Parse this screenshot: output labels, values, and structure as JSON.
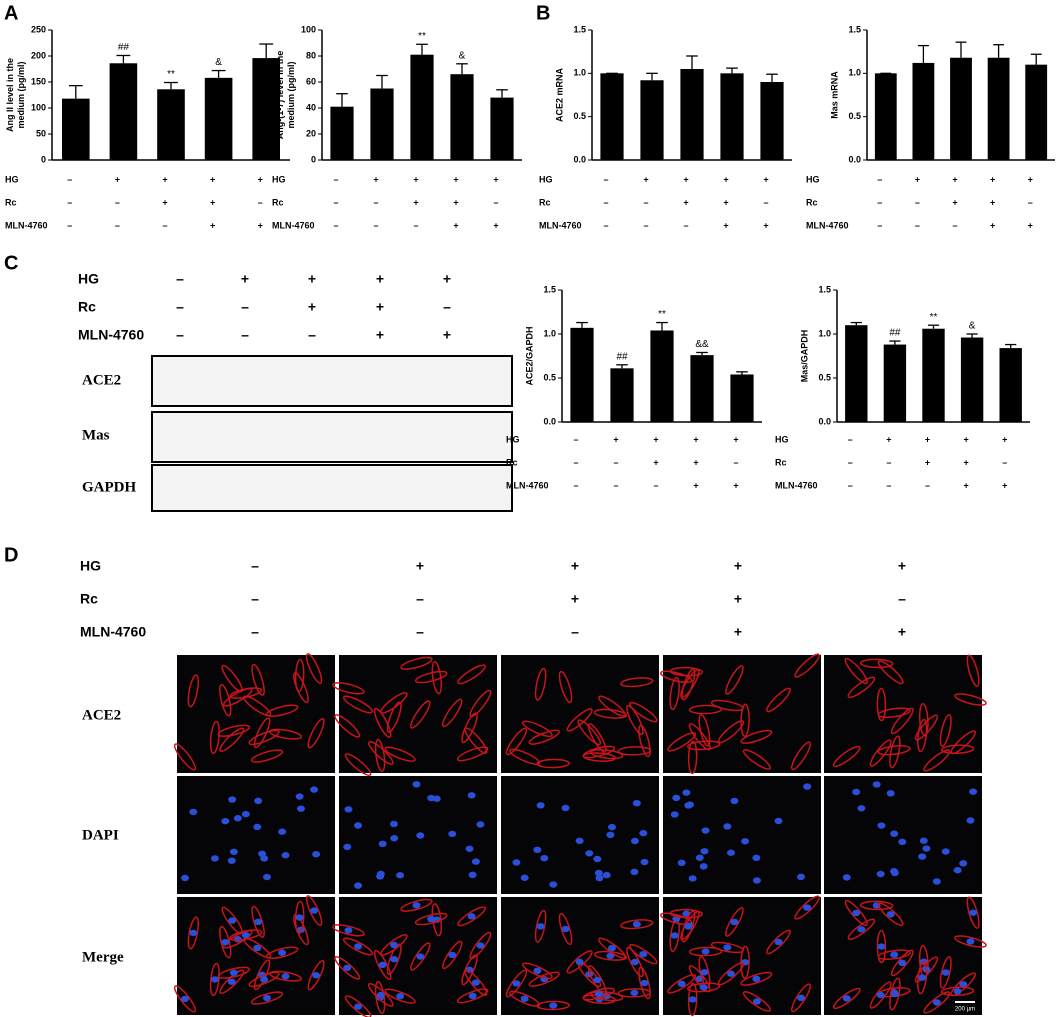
{
  "panels": [
    "A",
    "B",
    "C",
    "D"
  ],
  "conditions": {
    "rows": [
      {
        "label": "HG",
        "signs": [
          "–",
          "+",
          "+",
          "+",
          "+"
        ]
      },
      {
        "label": "Rc",
        "signs": [
          "–",
          "–",
          "+",
          "+",
          "–"
        ]
      },
      {
        "label": "MLN-4760",
        "signs": [
          "–",
          "–",
          "–",
          "+",
          "+"
        ]
      }
    ]
  },
  "blot": {
    "bands": [
      "ACE2",
      "Mas",
      "GAPDH"
    ]
  },
  "staining": {
    "rows": [
      "ACE2",
      "DAPI",
      "Merge"
    ],
    "scale_bar": "200 μm"
  },
  "chart_data": [
    {
      "type": "bar",
      "ylabel": [
        "Ang II level in the",
        "medium (pg/ml)"
      ],
      "ylim": [
        0,
        250
      ],
      "yticks": [
        0,
        50,
        100,
        150,
        200,
        250
      ],
      "values": [
        118,
        186,
        136,
        158,
        196
      ],
      "errors": [
        25,
        15,
        13,
        14,
        27
      ],
      "annotations": [
        null,
        "##",
        "**",
        "&",
        null
      ],
      "color": "#000000"
    },
    {
      "type": "bar",
      "ylabel": [
        "Ang-(1-7) level in the",
        "medium (pg/ml)"
      ],
      "ylim": [
        0,
        100
      ],
      "yticks": [
        0,
        20,
        40,
        60,
        80,
        100
      ],
      "values": [
        41,
        55,
        81,
        66,
        48
      ],
      "errors": [
        10,
        10,
        8,
        8,
        6
      ],
      "annotations": [
        null,
        null,
        "**",
        "&",
        null
      ],
      "color": "#000000"
    },
    {
      "type": "bar",
      "ylabel": [
        "ACE2 mRNA"
      ],
      "ylim": [
        0,
        1.5
      ],
      "yticks": [
        {
          "value": 0,
          "label": "0.0"
        },
        {
          "value": 0.5,
          "label": "0.5"
        },
        {
          "value": 1,
          "label": "1.0"
        },
        {
          "value": 1.5,
          "label": "1.5"
        }
      ],
      "values": [
        1.0,
        0.92,
        1.05,
        1.0,
        0.9
      ],
      "errors": [
        0,
        0.08,
        0.15,
        0.06,
        0.09
      ],
      "annotations": [
        null,
        null,
        null,
        null,
        null
      ],
      "color": "#000000"
    },
    {
      "type": "bar",
      "ylabel": [
        "Mas mRNA"
      ],
      "ylim": [
        0,
        1.5
      ],
      "yticks": [
        {
          "value": 0,
          "label": "0.0"
        },
        {
          "value": 0.5,
          "label": "0.5"
        },
        {
          "value": 1,
          "label": "1.0"
        },
        {
          "value": 1.5,
          "label": "1.5"
        }
      ],
      "values": [
        1.0,
        1.12,
        1.18,
        1.18,
        1.1
      ],
      "errors": [
        0,
        0.2,
        0.18,
        0.15,
        0.12
      ],
      "annotations": [
        null,
        null,
        null,
        null,
        null
      ],
      "color": "#000000"
    },
    {
      "type": "bar",
      "ylabel": [
        "ACE2/GAPDH"
      ],
      "ylim": [
        0,
        1.5
      ],
      "yticks": [
        {
          "value": 0,
          "label": "0.0"
        },
        {
          "value": 0.5,
          "label": "0.5"
        },
        {
          "value": 1,
          "label": "1.0"
        },
        {
          "value": 1.5,
          "label": "1.5"
        }
      ],
      "values": [
        1.07,
        0.61,
        1.04,
        0.76,
        0.54
      ],
      "errors": [
        0.06,
        0.04,
        0.09,
        0.03,
        0.03
      ],
      "annotations": [
        null,
        "##",
        "**",
        "&&",
        null
      ],
      "color": "#000000"
    },
    {
      "type": "bar",
      "ylabel": [
        "Mas/GAPDH"
      ],
      "ylim": [
        0,
        1.5
      ],
      "yticks": [
        {
          "value": 0,
          "label": "0.0"
        },
        {
          "value": 0.5,
          "label": "0.5"
        },
        {
          "value": 1,
          "label": "1.0"
        },
        {
          "value": 1.5,
          "label": "1.5"
        }
      ],
      "values": [
        1.1,
        0.88,
        1.06,
        0.96,
        0.84
      ],
      "errors": [
        0.03,
        0.04,
        0.04,
        0.04,
        0.04
      ],
      "annotations": [
        null,
        "##",
        "**",
        "&",
        null
      ],
      "color": "#000000"
    }
  ]
}
